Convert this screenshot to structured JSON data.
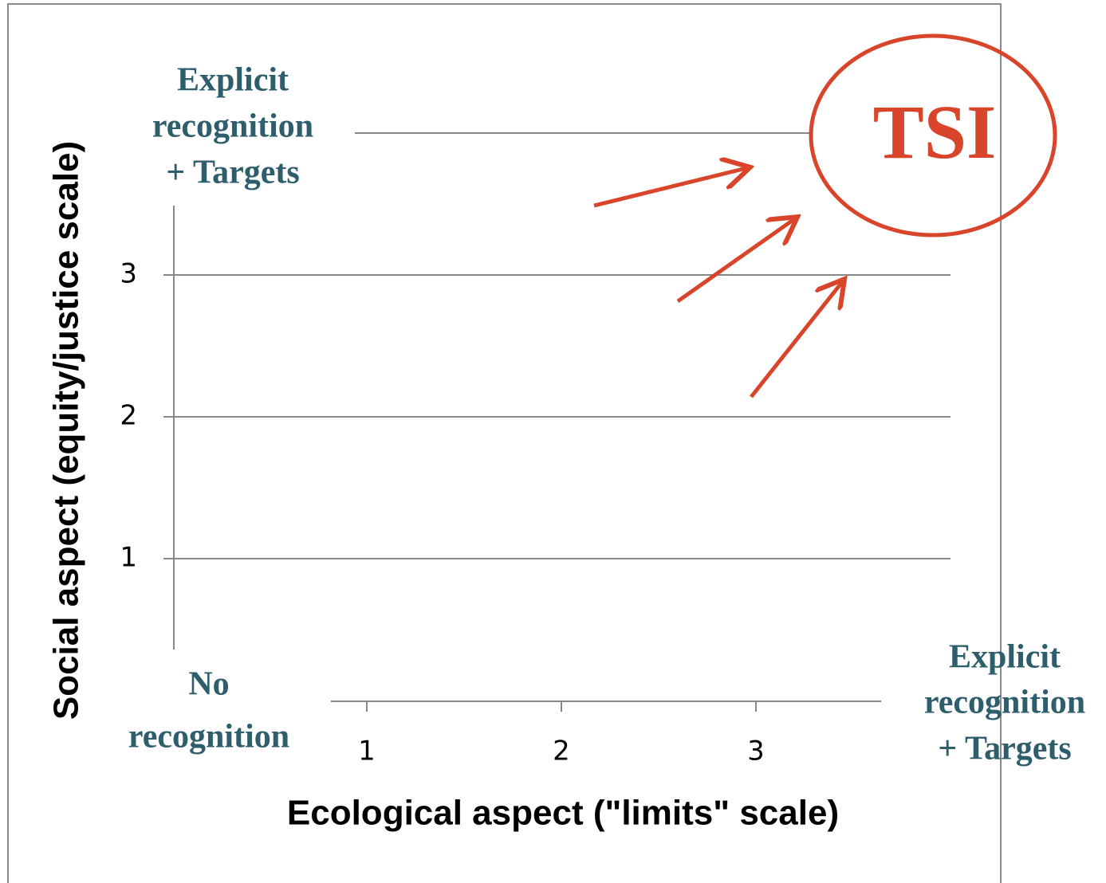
{
  "chart_data": {
    "type": "scatter",
    "x_label": "Ecological aspect (\"limits\" scale)",
    "y_label": "Social aspect (equity/justice scale)",
    "xlim": [
      0,
      4
    ],
    "xticks": [
      1,
      2,
      3
    ],
    "ylim": [
      0,
      4
    ],
    "yticks": [
      1,
      2,
      3
    ],
    "grid": true,
    "annotations": {
      "y_high": [
        "Explicit",
        "recognition",
        "+ Targets"
      ],
      "origin": [
        "No",
        "recognition"
      ],
      "x_high": [
        "Explicit",
        "recognition",
        "+ Targets"
      ],
      "target": "TSI"
    }
  }
}
